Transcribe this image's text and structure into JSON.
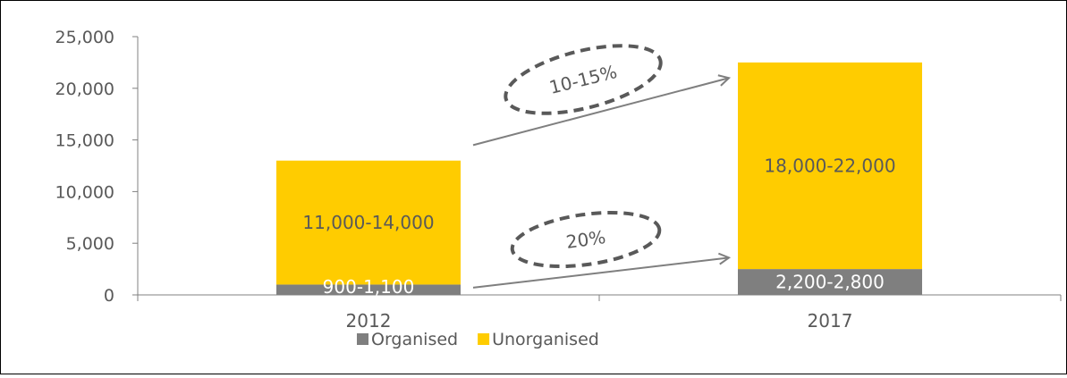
{
  "chart_data": {
    "type": "bar",
    "stacked": true,
    "categories": [
      "2012",
      "2017"
    ],
    "series": [
      {
        "name": "Organised",
        "values": [
          1000,
          2500
        ],
        "color": "#7f7f7f",
        "labels": [
          "900-1,100",
          "2,200-2,800"
        ],
        "label_color": "#ffffff"
      },
      {
        "name": "Unorganised",
        "values": [
          12000,
          20000
        ],
        "color": "#ffcc00",
        "labels": [
          "11,000-14,000",
          "18,000-22,000"
        ],
        "label_color": "#595959"
      }
    ],
    "ylim": [
      0,
      25000
    ],
    "yticks": [
      0,
      5000,
      10000,
      15000,
      20000,
      25000
    ],
    "ytick_labels": [
      "0",
      "5,000",
      "10,000",
      "15,000",
      "20,000",
      "25,000"
    ],
    "annotations": [
      {
        "text": "10-15%",
        "series": "Unorganised"
      },
      {
        "text": "20%",
        "series": "Organised"
      }
    ],
    "legend_position": "bottom",
    "grid": false,
    "annotation_color": "#7f7f7f",
    "annotation_ring_color": "#595959"
  }
}
